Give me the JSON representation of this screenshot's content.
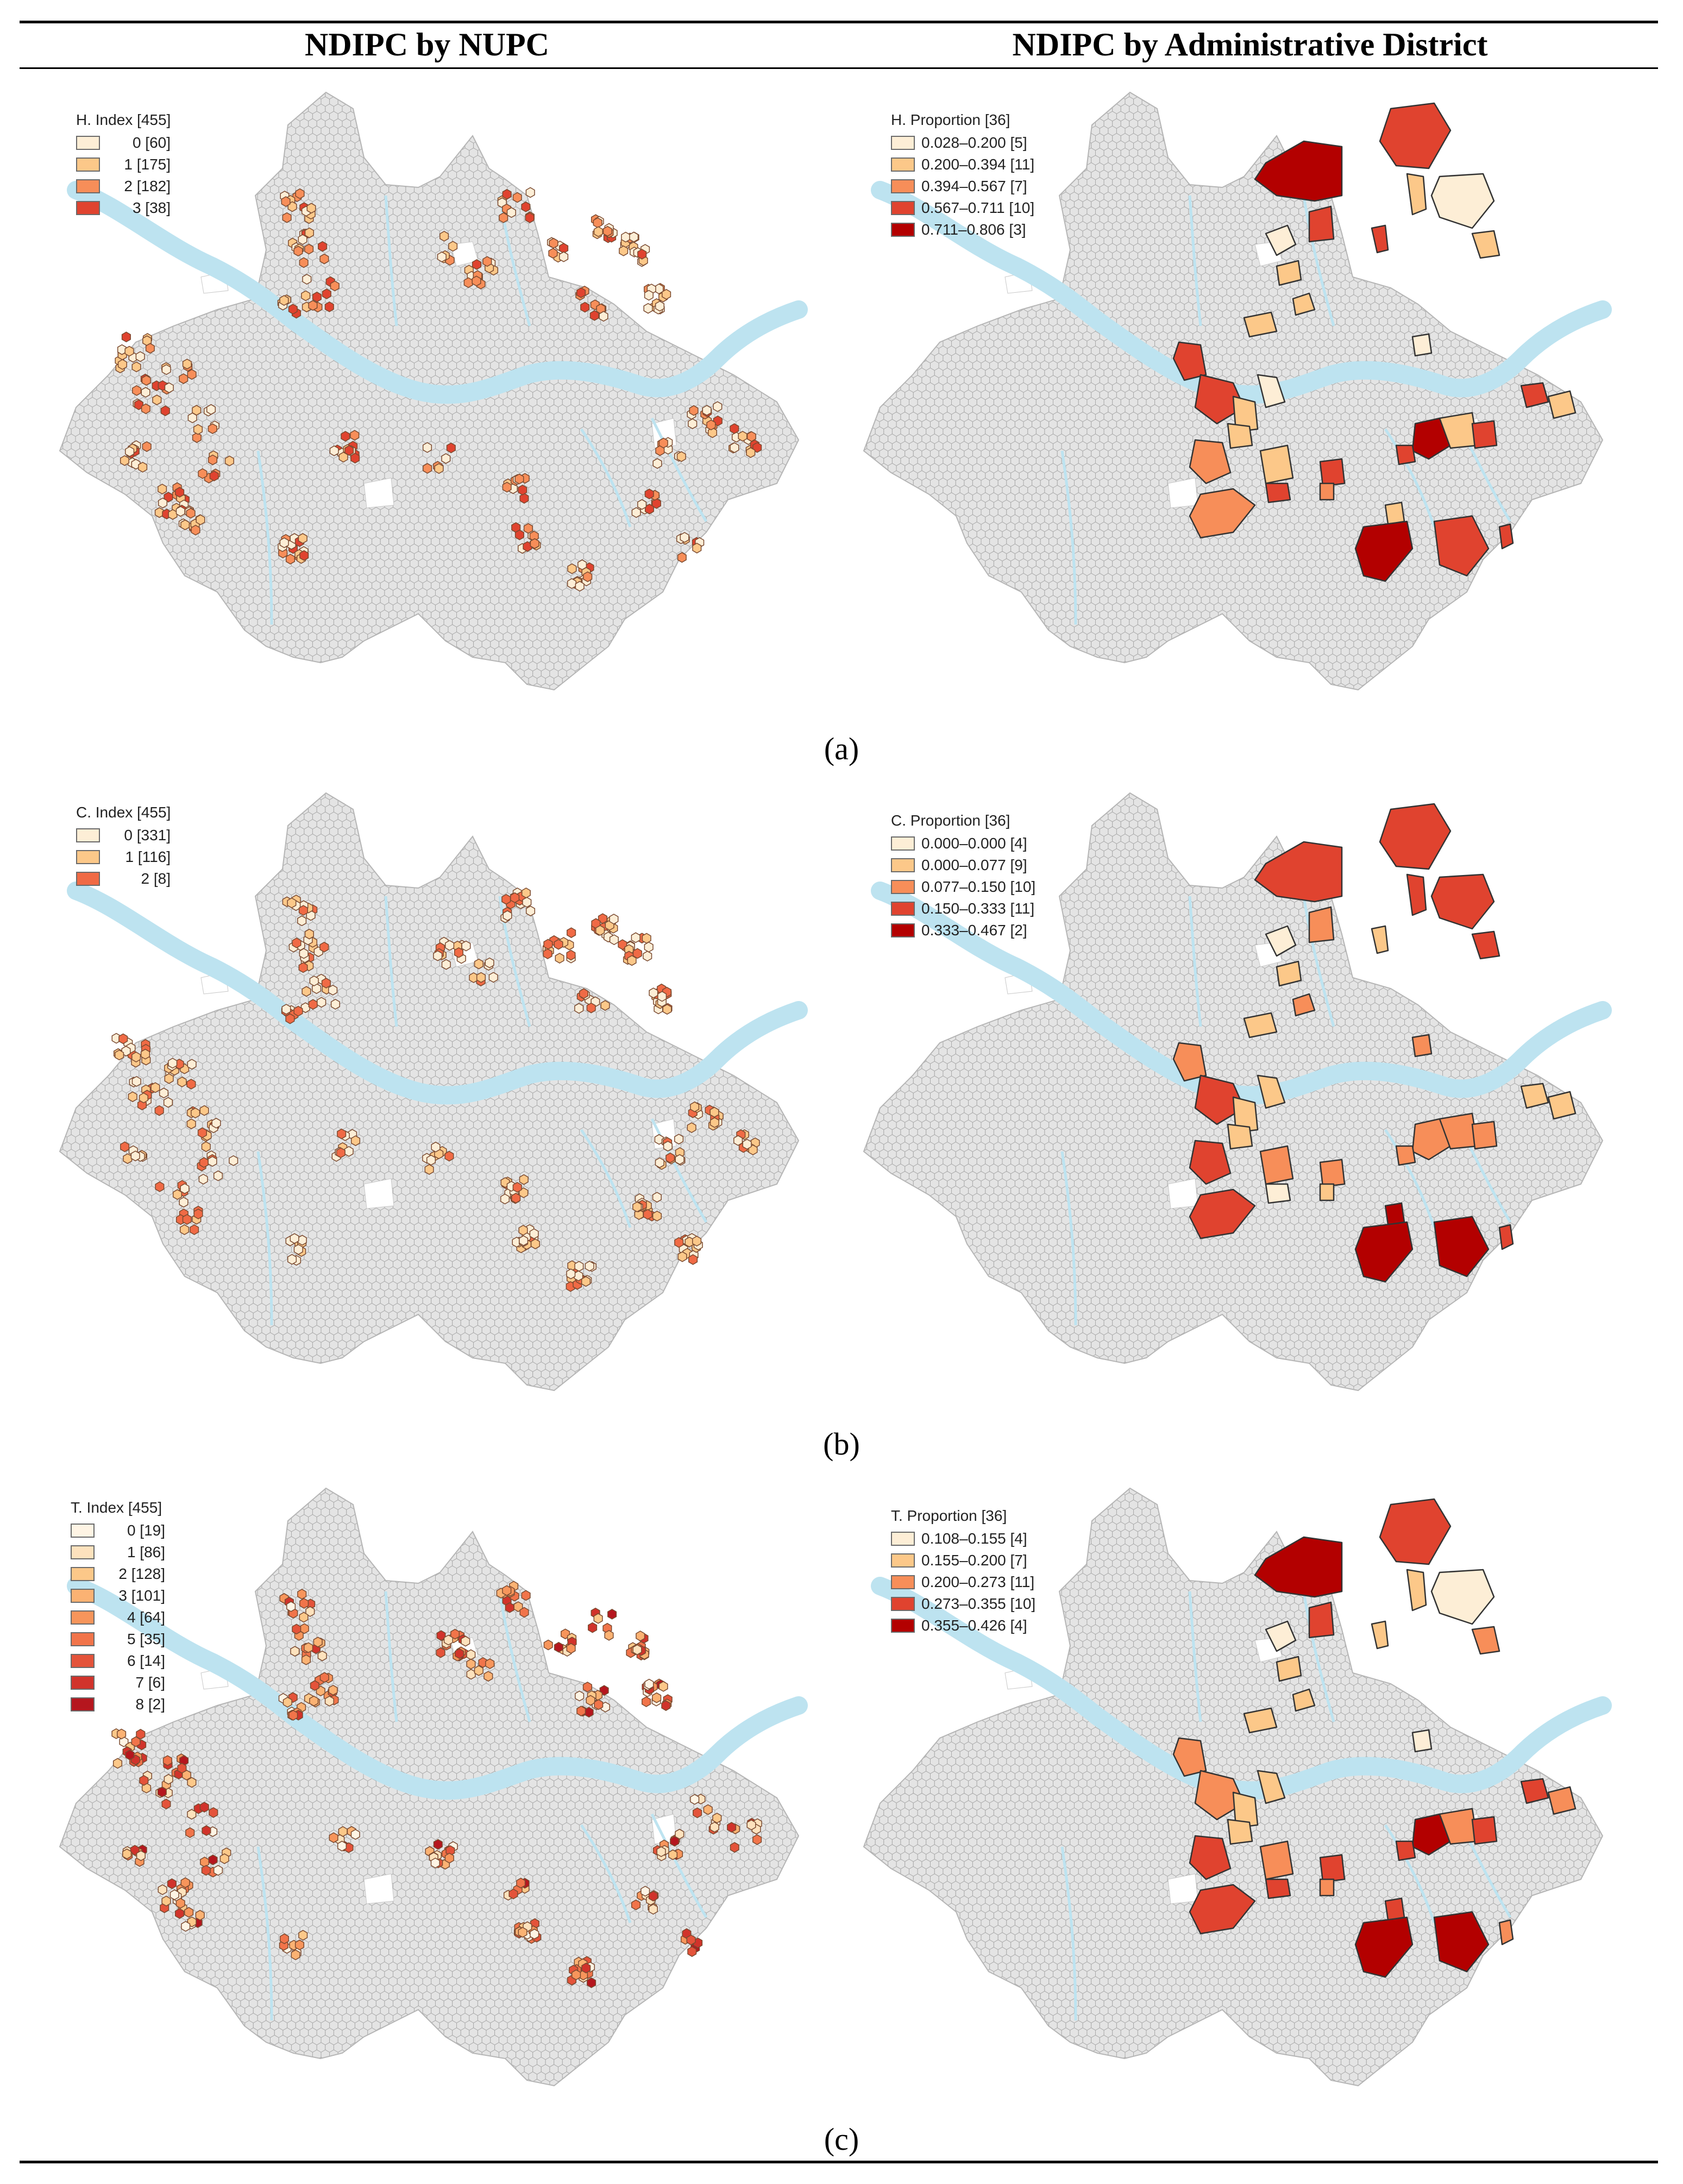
{
  "header": {
    "left_title": "NDIPC by NUPC",
    "right_title": "NDIPC by Administrative District"
  },
  "colors": {
    "river": "#bde3f0",
    "hex_fill": "#e4e4e4",
    "hex_stroke": "#a9a9a9",
    "district_stroke": "#333333"
  },
  "panels": [
    {
      "id": "a",
      "caption": "(a)",
      "left_legend": {
        "title": "H. Index [455]",
        "items": [
          {
            "label": "0 [60]",
            "color": "#fdeed6"
          },
          {
            "label": "1 [175]",
            "color": "#fcc889"
          },
          {
            "label": "2 [182]",
            "color": "#f78e59"
          },
          {
            "label": "3 [38]",
            "color": "#e0432f"
          }
        ]
      },
      "right_legend": {
        "title": "H. Proportion [36]",
        "items": [
          {
            "label": "0.028–0.200 [5]",
            "color": "#fdeed6"
          },
          {
            "label": "0.200–0.394 [11]",
            "color": "#fcc889"
          },
          {
            "label": "0.394–0.567 [7]",
            "color": "#f78e59"
          },
          {
            "label": "0.567–0.711 [10]",
            "color": "#e0432f"
          },
          {
            "label": "0.711–0.806 [3]",
            "color": "#b30000"
          }
        ]
      }
    },
    {
      "id": "b",
      "caption": "(b)",
      "left_legend": {
        "title": "C. Index [455]",
        "items": [
          {
            "label": "0 [331]",
            "color": "#fdeed6"
          },
          {
            "label": "1 [116]",
            "color": "#fcc889"
          },
          {
            "label": "2 [8]",
            "color": "#f06a45"
          }
        ]
      },
      "right_legend": {
        "title": "C. Proportion [36]",
        "items": [
          {
            "label": "0.000–0.000 [4]",
            "color": "#fdeed6"
          },
          {
            "label": "0.000–0.077 [9]",
            "color": "#fcc889"
          },
          {
            "label": "0.077–0.150 [10]",
            "color": "#f78e59"
          },
          {
            "label": "0.150–0.333 [11]",
            "color": "#e0432f"
          },
          {
            "label": "0.333–0.467 [2]",
            "color": "#b30000"
          }
        ]
      }
    },
    {
      "id": "c",
      "caption": "(c)",
      "left_legend": {
        "title": "T. Index [455]",
        "items": [
          {
            "label": "0 [19]",
            "color": "#fef4e4"
          },
          {
            "label": "1 [86]",
            "color": "#fde2bd"
          },
          {
            "label": "2 [128]",
            "color": "#fcc889"
          },
          {
            "label": "3 [101]",
            "color": "#fbb273"
          },
          {
            "label": "4 [64]",
            "color": "#f7955b"
          },
          {
            "label": "5 [35]",
            "color": "#f1744a"
          },
          {
            "label": "6 [14]",
            "color": "#e4533a"
          },
          {
            "label": "7 [6]",
            "color": "#d1332b"
          },
          {
            "label": "8 [2]",
            "color": "#b5161e"
          }
        ]
      },
      "right_legend": {
        "title": "T. Proportion [36]",
        "items": [
          {
            "label": "0.108–0.155 [4]",
            "color": "#fdeed6"
          },
          {
            "label": "0.155–0.200 [7]",
            "color": "#fcc889"
          },
          {
            "label": "0.200–0.273 [11]",
            "color": "#f78e59"
          },
          {
            "label": "0.273–0.355 [10]",
            "color": "#e0432f"
          },
          {
            "label": "0.355–0.426 [4]",
            "color": "#b30000"
          }
        ]
      }
    }
  ]
}
